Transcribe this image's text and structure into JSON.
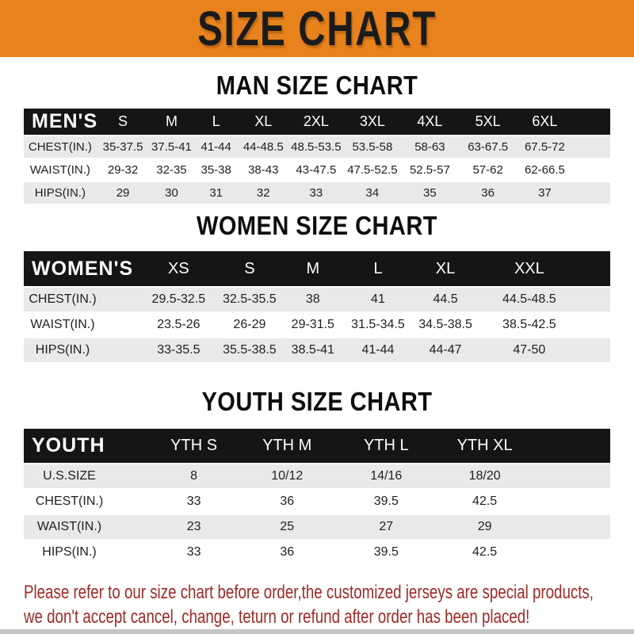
{
  "banner": {
    "title": "SIZE CHART"
  },
  "men": {
    "title": "MAN SIZE CHART",
    "corner_label": "MEN'S",
    "sizes": [
      "S",
      "M",
      "L",
      "XL",
      "2XL",
      "3XL",
      "4XL",
      "5XL",
      "6XL"
    ],
    "rows": [
      {
        "label": "CHEST(IN.)",
        "values": [
          "35-37.5",
          "37.5-41",
          "41-44",
          "44-48.5",
          "48.5-53.5",
          "53.5-58",
          "58-63",
          "63-67.5",
          "67.5-72"
        ]
      },
      {
        "label": "WAIST(IN.)",
        "values": [
          "29-32",
          "32-35",
          "35-38",
          "38-43",
          "43-47.5",
          "47.5-52.5",
          "52.5-57",
          "57-62",
          "62-66.5"
        ]
      },
      {
        "label": "HIPS(IN.)",
        "values": [
          "29",
          "30",
          "31",
          "32",
          "33",
          "34",
          "35",
          "36",
          "37"
        ]
      }
    ]
  },
  "women": {
    "title": "WOMEN SIZE CHART",
    "corner_label": "WOMEN'S",
    "sizes": [
      "XS",
      "S",
      "M",
      "L",
      "XL",
      "XXL"
    ],
    "rows": [
      {
        "label": "CHEST(IN.)",
        "values": [
          "29.5-32.5",
          "32.5-35.5",
          "38",
          "41",
          "44.5",
          "44.5-48.5"
        ]
      },
      {
        "label": "WAIST(IN.)",
        "values": [
          "23.5-26",
          "26-29",
          "29-31.5",
          "31.5-34.5",
          "34.5-38.5",
          "38.5-42.5"
        ]
      },
      {
        "label": "HIPS(IN.)",
        "values": [
          "33-35.5",
          "35.5-38.5",
          "38.5-41",
          "41-44",
          "44-47",
          "47-50"
        ]
      }
    ]
  },
  "youth": {
    "title": "YOUTH SIZE CHART",
    "corner_label": "YOUTH",
    "sizes": [
      "YTH S",
      "YTH M",
      "YTH L",
      "YTH XL"
    ],
    "rows": [
      {
        "label": "U.S.SIZE",
        "values": [
          "8",
          "10/12",
          "14/16",
          "18/20"
        ]
      },
      {
        "label": "CHEST(IN.)",
        "values": [
          "33",
          "36",
          "39.5",
          "42.5"
        ]
      },
      {
        "label": "WAIST(IN.)",
        "values": [
          "23",
          "25",
          "27",
          "29"
        ]
      },
      {
        "label": "HIPS(IN.)",
        "values": [
          "33",
          "36",
          "39.5",
          "42.5"
        ]
      }
    ]
  },
  "footer": {
    "lines": [
      "Please refer to our size chart before order,the customized jerseys are special products,",
      "we don't accept cancel, change, teturn or refund after order has been placed!"
    ]
  },
  "colors": {
    "banner_bg": "#E8821C",
    "header_bar_bg": "#151515",
    "row_alt_bg": "#E9E9E9",
    "footer_text": "#9E2A25"
  }
}
